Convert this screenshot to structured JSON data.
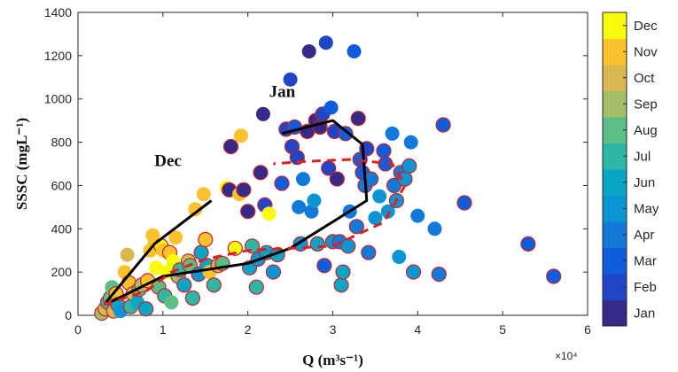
{
  "chart_data": {
    "type": "scatter",
    "xlabel": "Q (m³s⁻¹)",
    "ylabel": "SSSC (mgL⁻¹)",
    "x_exponent_label": "×10⁴",
    "xlim": [
      0,
      6
    ],
    "ylim": [
      0,
      1400
    ],
    "xticks": [
      "0",
      "1",
      "2",
      "3",
      "4",
      "5",
      "6"
    ],
    "yticks": [
      "0",
      "200",
      "400",
      "600",
      "800",
      "1000",
      "1200",
      "1400"
    ],
    "colorbar": {
      "labels": [
        "Jan",
        "Feb",
        "Mar",
        "Apr",
        "May",
        "Jun",
        "Jul",
        "Aug",
        "Sep",
        "Oct",
        "Nov",
        "Dec"
      ],
      "colors": [
        "#352a87",
        "#2245c8",
        "#0f5cdd",
        "#1279d8",
        "#0d94d2",
        "#0aa5c4",
        "#2fb6a5",
        "#5dbd86",
        "#a3bd6b",
        "#d9b94f",
        "#fbc22d",
        "#f9fb0e"
      ]
    },
    "annotations": [
      {
        "text": "Dec",
        "x": 0.9,
        "y": 690
      },
      {
        "text": "Jan",
        "x": 2.25,
        "y": 1010
      }
    ],
    "edge_color": "#c0262b",
    "points": [
      {
        "x": 0.28,
        "y": 10,
        "m": 9,
        "e": 1
      },
      {
        "x": 0.32,
        "y": 30,
        "m": 10,
        "e": 1
      },
      {
        "x": 0.35,
        "y": 60,
        "m": 7,
        "e": 1
      },
      {
        "x": 0.38,
        "y": 80,
        "m": 8,
        "e": 1
      },
      {
        "x": 0.4,
        "y": 130,
        "m": 8,
        "e": 0
      },
      {
        "x": 0.42,
        "y": 20,
        "m": 10,
        "e": 1
      },
      {
        "x": 0.45,
        "y": 100,
        "m": 11,
        "e": 1
      },
      {
        "x": 0.47,
        "y": 50,
        "m": 6,
        "e": 1
      },
      {
        "x": 0.5,
        "y": 20,
        "m": 5,
        "e": 0
      },
      {
        "x": 0.55,
        "y": 200,
        "m": 11,
        "e": 0
      },
      {
        "x": 0.58,
        "y": 280,
        "m": 10,
        "e": 0
      },
      {
        "x": 0.6,
        "y": 150,
        "m": 11,
        "e": 1
      },
      {
        "x": 0.62,
        "y": 40,
        "m": 7,
        "e": 1
      },
      {
        "x": 0.65,
        "y": 100,
        "m": 10,
        "e": 1
      },
      {
        "x": 0.7,
        "y": 60,
        "m": 6,
        "e": 0
      },
      {
        "x": 0.72,
        "y": 120,
        "m": 8,
        "e": 1
      },
      {
        "x": 0.75,
        "y": 140,
        "m": 9,
        "e": 1
      },
      {
        "x": 0.8,
        "y": 30,
        "m": 6,
        "e": 1
      },
      {
        "x": 0.82,
        "y": 160,
        "m": 11,
        "e": 1
      },
      {
        "x": 0.85,
        "y": 300,
        "m": 11,
        "e": 0
      },
      {
        "x": 0.88,
        "y": 370,
        "m": 11,
        "e": 0
      },
      {
        "x": 0.9,
        "y": 330,
        "m": 11,
        "e": 0
      },
      {
        "x": 0.92,
        "y": 220,
        "m": 12,
        "e": 0
      },
      {
        "x": 0.95,
        "y": 130,
        "m": 8,
        "e": 1
      },
      {
        "x": 0.98,
        "y": 320,
        "m": 12,
        "e": 1
      },
      {
        "x": 1.0,
        "y": 300,
        "m": 11,
        "e": 0
      },
      {
        "x": 1.02,
        "y": 90,
        "m": 7,
        "e": 1
      },
      {
        "x": 1.05,
        "y": 200,
        "m": 12,
        "e": 0
      },
      {
        "x": 1.08,
        "y": 290,
        "m": 11,
        "e": 1
      },
      {
        "x": 1.1,
        "y": 60,
        "m": 8,
        "e": 0
      },
      {
        "x": 1.12,
        "y": 250,
        "m": 12,
        "e": 0
      },
      {
        "x": 1.15,
        "y": 360,
        "m": 11,
        "e": 0
      },
      {
        "x": 1.18,
        "y": 180,
        "m": 9,
        "e": 1
      },
      {
        "x": 1.2,
        "y": 210,
        "m": 7,
        "e": 1
      },
      {
        "x": 1.25,
        "y": 140,
        "m": 6,
        "e": 1
      },
      {
        "x": 1.3,
        "y": 250,
        "m": 10,
        "e": 1
      },
      {
        "x": 1.32,
        "y": 230,
        "m": 8,
        "e": 1
      },
      {
        "x": 1.35,
        "y": 80,
        "m": 7,
        "e": 1
      },
      {
        "x": 1.38,
        "y": 490,
        "m": 11,
        "e": 0
      },
      {
        "x": 1.42,
        "y": 190,
        "m": 5,
        "e": 1
      },
      {
        "x": 1.45,
        "y": 290,
        "m": 6,
        "e": 1
      },
      {
        "x": 1.48,
        "y": 560,
        "m": 11,
        "e": 0
      },
      {
        "x": 1.5,
        "y": 350,
        "m": 11,
        "e": 1
      },
      {
        "x": 1.52,
        "y": 230,
        "m": 6,
        "e": 1
      },
      {
        "x": 1.55,
        "y": 200,
        "m": 11,
        "e": 0
      },
      {
        "x": 1.6,
        "y": 140,
        "m": 7,
        "e": 1
      },
      {
        "x": 1.65,
        "y": 230,
        "m": 10,
        "e": 1
      },
      {
        "x": 1.7,
        "y": 240,
        "m": 8,
        "e": 1
      },
      {
        "x": 1.75,
        "y": 590,
        "m": 12,
        "e": 0
      },
      {
        "x": 1.78,
        "y": 580,
        "m": 1,
        "e": 1
      },
      {
        "x": 1.8,
        "y": 780,
        "m": 1,
        "e": 1
      },
      {
        "x": 1.85,
        "y": 310,
        "m": 12,
        "e": 1
      },
      {
        "x": 1.9,
        "y": 560,
        "m": 11,
        "e": 0
      },
      {
        "x": 1.92,
        "y": 830,
        "m": 11,
        "e": 0
      },
      {
        "x": 1.95,
        "y": 580,
        "m": 1,
        "e": 1
      },
      {
        "x": 2.0,
        "y": 480,
        "m": 1,
        "e": 1
      },
      {
        "x": 2.02,
        "y": 220,
        "m": 6,
        "e": 1
      },
      {
        "x": 2.05,
        "y": 320,
        "m": 7,
        "e": 1
      },
      {
        "x": 2.1,
        "y": 130,
        "m": 7,
        "e": 1
      },
      {
        "x": 2.12,
        "y": 260,
        "m": 5,
        "e": 1
      },
      {
        "x": 2.15,
        "y": 660,
        "m": 1,
        "e": 1
      },
      {
        "x": 2.18,
        "y": 930,
        "m": 1,
        "e": 0
      },
      {
        "x": 2.2,
        "y": 510,
        "m": 2,
        "e": 1
      },
      {
        "x": 2.22,
        "y": 290,
        "m": 6,
        "e": 1
      },
      {
        "x": 2.25,
        "y": 470,
        "m": 12,
        "e": 0
      },
      {
        "x": 2.3,
        "y": 200,
        "m": 5,
        "e": 1
      },
      {
        "x": 2.35,
        "y": 280,
        "m": 6,
        "e": 1
      },
      {
        "x": 2.4,
        "y": 610,
        "m": 3,
        "e": 1
      },
      {
        "x": 2.45,
        "y": 860,
        "m": 2,
        "e": 1
      },
      {
        "x": 2.5,
        "y": 1090,
        "m": 2,
        "e": 0
      },
      {
        "x": 2.52,
        "y": 780,
        "m": 2,
        "e": 1
      },
      {
        "x": 2.55,
        "y": 870,
        "m": 3,
        "e": 1
      },
      {
        "x": 2.58,
        "y": 730,
        "m": 2,
        "e": 1
      },
      {
        "x": 2.6,
        "y": 500,
        "m": 4,
        "e": 0
      },
      {
        "x": 2.62,
        "y": 330,
        "m": 5,
        "e": 1
      },
      {
        "x": 2.65,
        "y": 630,
        "m": 4,
        "e": 0
      },
      {
        "x": 2.7,
        "y": 850,
        "m": 1,
        "e": 1
      },
      {
        "x": 2.72,
        "y": 1220,
        "m": 1,
        "e": 0
      },
      {
        "x": 2.75,
        "y": 480,
        "m": 4,
        "e": 0
      },
      {
        "x": 2.78,
        "y": 530,
        "m": 5,
        "e": 0
      },
      {
        "x": 2.8,
        "y": 900,
        "m": 1,
        "e": 1
      },
      {
        "x": 2.82,
        "y": 330,
        "m": 6,
        "e": 1
      },
      {
        "x": 2.85,
        "y": 870,
        "m": 1,
        "e": 1
      },
      {
        "x": 2.88,
        "y": 930,
        "m": 2,
        "e": 1
      },
      {
        "x": 2.9,
        "y": 230,
        "m": 3,
        "e": 1
      },
      {
        "x": 2.92,
        "y": 1260,
        "m": 2,
        "e": 0
      },
      {
        "x": 2.95,
        "y": 680,
        "m": 2,
        "e": 1
      },
      {
        "x": 2.98,
        "y": 960,
        "m": 3,
        "e": 0
      },
      {
        "x": 3.0,
        "y": 340,
        "m": 5,
        "e": 1
      },
      {
        "x": 3.02,
        "y": 850,
        "m": 2,
        "e": 1
      },
      {
        "x": 3.05,
        "y": 630,
        "m": 1,
        "e": 1
      },
      {
        "x": 3.08,
        "y": 340,
        "m": 4,
        "e": 1
      },
      {
        "x": 3.1,
        "y": 140,
        "m": 6,
        "e": 1
      },
      {
        "x": 3.12,
        "y": 200,
        "m": 6,
        "e": 1
      },
      {
        "x": 3.15,
        "y": 840,
        "m": 3,
        "e": 1
      },
      {
        "x": 3.18,
        "y": 320,
        "m": 5,
        "e": 1
      },
      {
        "x": 3.2,
        "y": 480,
        "m": 4,
        "e": 0
      },
      {
        "x": 3.25,
        "y": 1220,
        "m": 3,
        "e": 0
      },
      {
        "x": 3.28,
        "y": 410,
        "m": 4,
        "e": 1
      },
      {
        "x": 3.3,
        "y": 910,
        "m": 1,
        "e": 1
      },
      {
        "x": 3.32,
        "y": 720,
        "m": 3,
        "e": 1
      },
      {
        "x": 3.35,
        "y": 660,
        "m": 3,
        "e": 1
      },
      {
        "x": 3.38,
        "y": 600,
        "m": 4,
        "e": 1
      },
      {
        "x": 3.4,
        "y": 770,
        "m": 2,
        "e": 1
      },
      {
        "x": 3.42,
        "y": 290,
        "m": 4,
        "e": 1
      },
      {
        "x": 3.45,
        "y": 630,
        "m": 4,
        "e": 1
      },
      {
        "x": 3.5,
        "y": 450,
        "m": 5,
        "e": 0
      },
      {
        "x": 3.55,
        "y": 550,
        "m": 5,
        "e": 0
      },
      {
        "x": 3.6,
        "y": 760,
        "m": 3,
        "e": 1
      },
      {
        "x": 3.62,
        "y": 700,
        "m": 3,
        "e": 1
      },
      {
        "x": 3.65,
        "y": 480,
        "m": 5,
        "e": 0
      },
      {
        "x": 3.7,
        "y": 840,
        "m": 4,
        "e": 0
      },
      {
        "x": 3.72,
        "y": 600,
        "m": 4,
        "e": 1
      },
      {
        "x": 3.75,
        "y": 530,
        "m": 5,
        "e": 1
      },
      {
        "x": 3.78,
        "y": 270,
        "m": 5,
        "e": 0
      },
      {
        "x": 3.8,
        "y": 660,
        "m": 4,
        "e": 1
      },
      {
        "x": 3.85,
        "y": 630,
        "m": 5,
        "e": 1
      },
      {
        "x": 3.9,
        "y": 690,
        "m": 5,
        "e": 1
      },
      {
        "x": 3.92,
        "y": 800,
        "m": 4,
        "e": 0
      },
      {
        "x": 3.95,
        "y": 200,
        "m": 5,
        "e": 1
      },
      {
        "x": 4.0,
        "y": 460,
        "m": 4,
        "e": 0
      },
      {
        "x": 4.2,
        "y": 400,
        "m": 4,
        "e": 0
      },
      {
        "x": 4.25,
        "y": 190,
        "m": 4,
        "e": 1
      },
      {
        "x": 4.3,
        "y": 880,
        "m": 3,
        "e": 1
      },
      {
        "x": 4.55,
        "y": 520,
        "m": 3,
        "e": 1
      },
      {
        "x": 5.3,
        "y": 330,
        "m": 3,
        "e": 1
      },
      {
        "x": 5.6,
        "y": 180,
        "m": 3,
        "e": 1
      }
    ],
    "lines": [
      {
        "name": "dec-line",
        "style": "solid",
        "color": "#000000",
        "points": [
          [
            0.33,
            60
          ],
          [
            0.9,
            330
          ],
          [
            1.57,
            530
          ]
        ]
      },
      {
        "name": "jan-line",
        "style": "solid",
        "color": "#000000",
        "points": [
          [
            0.35,
            55
          ],
          [
            1.0,
            180
          ],
          [
            2.0,
            240
          ],
          [
            2.5,
            310
          ],
          [
            3.4,
            530
          ],
          [
            3.35,
            790
          ],
          [
            3.0,
            900
          ],
          [
            2.4,
            840
          ]
        ]
      },
      {
        "name": "dashed-hysteresis-line",
        "style": "dashed",
        "color": "#e02020",
        "points": [
          [
            0.3,
            50
          ],
          [
            0.8,
            110
          ],
          [
            1.1,
            200
          ],
          [
            1.5,
            260
          ],
          [
            2.0,
            300
          ],
          [
            2.5,
            310
          ],
          [
            3.0,
            320
          ],
          [
            3.6,
            430
          ],
          [
            3.85,
            600
          ],
          [
            3.7,
            700
          ],
          [
            3.2,
            720
          ],
          [
            2.6,
            710
          ],
          [
            2.3,
            700
          ]
        ]
      }
    ]
  }
}
